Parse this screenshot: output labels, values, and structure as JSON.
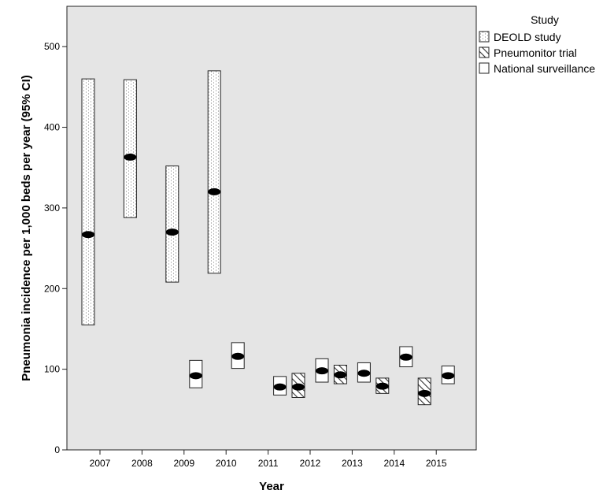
{
  "chart_data": {
    "type": "range-bar",
    "xlabel": "Year",
    "ylabel": "Pneumonia incidence per 1,000 beds per year (95% CI)",
    "ylim": [
      0,
      550
    ],
    "yticks": [
      0,
      100,
      200,
      300,
      400,
      500
    ],
    "categories": [
      "2007",
      "2008",
      "2009",
      "2010",
      "2011",
      "2012",
      "2013",
      "2014",
      "2015"
    ],
    "grid": false,
    "legend": {
      "title": "Study",
      "position": "right"
    },
    "series": [
      {
        "name": "DEOLD study",
        "pattern": "dotted",
        "points": [
          {
            "x": "2007",
            "estimate": 267,
            "lower": 155,
            "upper": 460
          },
          {
            "x": "2008",
            "estimate": 363,
            "lower": 288,
            "upper": 459
          },
          {
            "x": "2009",
            "estimate": 270,
            "lower": 208,
            "upper": 352
          },
          {
            "x": "2010",
            "estimate": 320,
            "lower": 219,
            "upper": 470
          }
        ]
      },
      {
        "name": "Pneumonitor trial",
        "pattern": "hatched",
        "points": [
          {
            "x": "2012",
            "estimate": 78,
            "lower": 65,
            "upper": 95
          },
          {
            "x": "2013",
            "estimate": 93,
            "lower": 82,
            "upper": 105
          },
          {
            "x": "2014",
            "estimate": 79,
            "lower": 70,
            "upper": 89
          },
          {
            "x": "2015",
            "estimate": 70,
            "lower": 56,
            "upper": 89
          }
        ]
      },
      {
        "name": "National surveillance",
        "pattern": "plain",
        "points": [
          {
            "x": "2009",
            "estimate": 92,
            "lower": 77,
            "upper": 111
          },
          {
            "x": "2010",
            "estimate": 116,
            "lower": 101,
            "upper": 133
          },
          {
            "x": "2011",
            "estimate": 78,
            "lower": 68,
            "upper": 91
          },
          {
            "x": "2012",
            "estimate": 98,
            "lower": 84,
            "upper": 113
          },
          {
            "x": "2013",
            "estimate": 95,
            "lower": 84,
            "upper": 108
          },
          {
            "x": "2014",
            "estimate": 115,
            "lower": 103,
            "upper": 128
          },
          {
            "x": "2015",
            "estimate": 92,
            "lower": 82,
            "upper": 104
          }
        ]
      }
    ]
  }
}
